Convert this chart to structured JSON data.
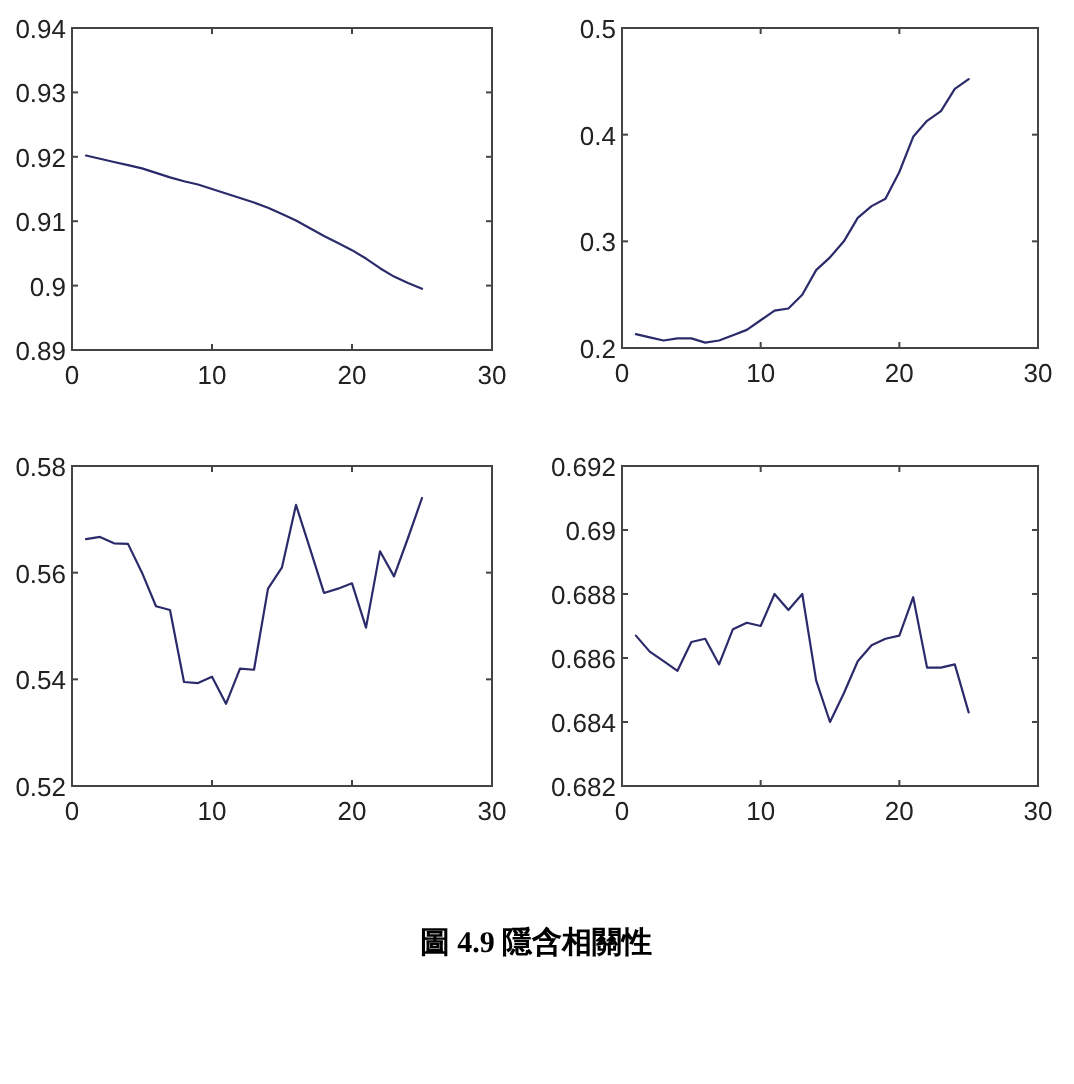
{
  "chart_data": [
    {
      "type": "line",
      "x": [
        1,
        2,
        3,
        4,
        5,
        6,
        7,
        8,
        9,
        10,
        11,
        12,
        13,
        14,
        15,
        16,
        17,
        18,
        19,
        20,
        21,
        22,
        23,
        24,
        25
      ],
      "series": [
        {
          "color": "#2b2b6b",
          "values": [
            0.9202,
            0.9197,
            0.9192,
            0.9187,
            0.9182,
            0.9175,
            0.9168,
            0.9162,
            0.9157,
            0.915,
            0.9143,
            0.9136,
            0.9129,
            0.9121,
            0.9111,
            0.9101,
            0.9089,
            0.9077,
            0.9066,
            0.9055,
            0.9042,
            0.9027,
            0.9014,
            0.9004,
            0.8995
          ]
        }
      ],
      "xlim": [
        0,
        30
      ],
      "xticks": [
        0,
        10,
        20,
        30
      ],
      "ylim": [
        0.89,
        0.94
      ],
      "yticks": [
        0.89,
        0.9,
        0.91,
        0.92,
        0.93,
        0.94
      ],
      "grid": false
    },
    {
      "type": "line",
      "x": [
        1,
        2,
        3,
        4,
        5,
        6,
        7,
        8,
        9,
        10,
        11,
        12,
        13,
        14,
        15,
        16,
        17,
        18,
        19,
        20,
        21,
        22,
        23,
        24,
        25
      ],
      "series": [
        {
          "color": "#2b2b6b",
          "values": [
            0.213,
            0.21,
            0.207,
            0.209,
            0.209,
            0.205,
            0.207,
            0.212,
            0.217,
            0.226,
            0.235,
            0.237,
            0.25,
            0.273,
            0.285,
            0.3,
            0.322,
            0.333,
            0.34,
            0.365,
            0.398,
            0.413,
            0.422,
            0.443,
            0.452
          ]
        }
      ],
      "xlim": [
        0,
        30
      ],
      "xticks": [
        0,
        10,
        20,
        30
      ],
      "ylim": [
        0.2,
        0.5
      ],
      "yticks": [
        0.2,
        0.3,
        0.4,
        0.5
      ],
      "grid": false
    },
    {
      "type": "line",
      "x": [
        1,
        2,
        3,
        4,
        5,
        6,
        7,
        8,
        9,
        10,
        11,
        12,
        13,
        14,
        15,
        16,
        17,
        18,
        19,
        20,
        21,
        22,
        23,
        24,
        25
      ],
      "series": [
        {
          "color": "#2b2b6b",
          "values": [
            0.5663,
            0.5667,
            0.5655,
            0.5654,
            0.56,
            0.5537,
            0.553,
            0.5395,
            0.5393,
            0.5405,
            0.5354,
            0.542,
            0.5418,
            0.557,
            0.561,
            0.5727,
            0.5645,
            0.5562,
            0.557,
            0.558,
            0.5497,
            0.564,
            0.5593,
            0.5665,
            0.574
          ]
        }
      ],
      "xlim": [
        0,
        30
      ],
      "xticks": [
        0,
        10,
        20,
        30
      ],
      "ylim": [
        0.52,
        0.58
      ],
      "yticks": [
        0.52,
        0.54,
        0.56,
        0.58
      ],
      "grid": false
    },
    {
      "type": "line",
      "x": [
        1,
        2,
        3,
        4,
        5,
        6,
        7,
        8,
        9,
        10,
        11,
        12,
        13,
        14,
        15,
        16,
        17,
        18,
        19,
        20,
        21,
        22,
        23,
        24,
        25
      ],
      "series": [
        {
          "color": "#2b2b6b",
          "values": [
            0.6867,
            0.6862,
            0.6859,
            0.6856,
            0.6865,
            0.6866,
            0.6858,
            0.6869,
            0.6871,
            0.687,
            0.688,
            0.6875,
            0.688,
            0.6853,
            0.684,
            0.6849,
            0.6859,
            0.6864,
            0.6866,
            0.6867,
            0.6879,
            0.6857,
            0.6857,
            0.6858,
            0.6843
          ]
        }
      ],
      "xlim": [
        0,
        30
      ],
      "xticks": [
        0,
        10,
        20,
        30
      ],
      "ylim": [
        0.682,
        0.692
      ],
      "yticks": [
        0.682,
        0.684,
        0.686,
        0.688,
        0.69,
        0.692
      ],
      "grid": false,
      "annotations": [
        "圖 4.9 隱含相關性"
      ]
    }
  ]
}
